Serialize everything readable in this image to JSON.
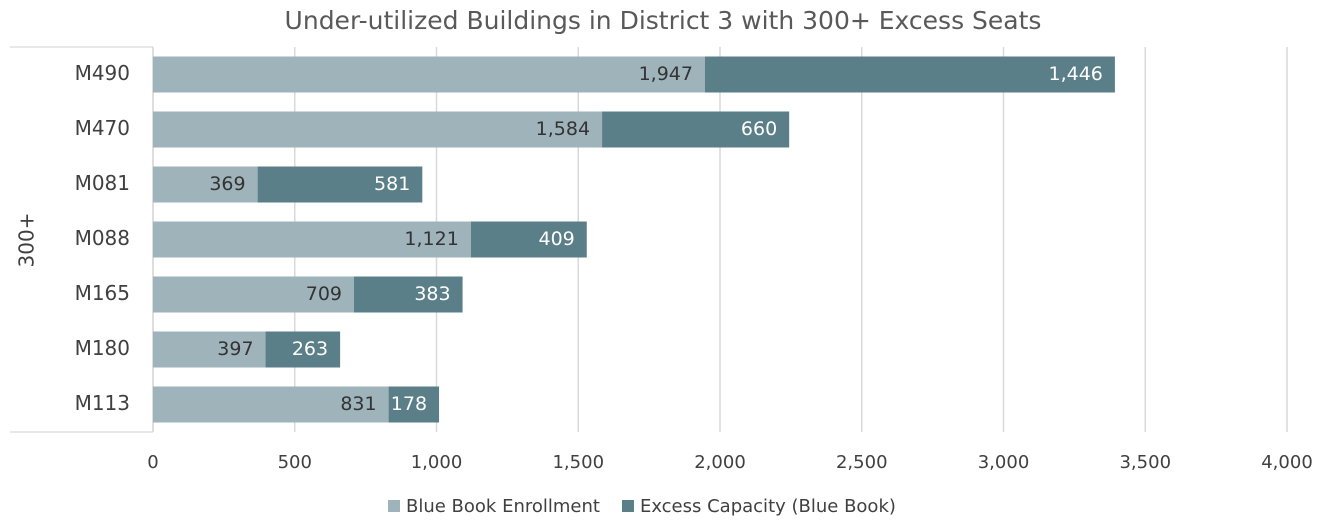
{
  "chart_data": {
    "type": "stacked-barh",
    "title": "Under-utilized Buildings in District 3 with 300+ Excess Seats",
    "group_label": "300+",
    "categories": [
      "M490",
      "M470",
      "M081",
      "M088",
      "M165",
      "M180",
      "M113"
    ],
    "series": [
      {
        "name": "Blue Book Enrollment",
        "color": "#9fb3bb",
        "label_color": "#333333",
        "values": [
          1947,
          1584,
          369,
          1121,
          709,
          397,
          831
        ],
        "value_labels": [
          "1,947",
          "1,584",
          "369",
          "1,121",
          "709",
          "397",
          "831"
        ]
      },
      {
        "name": "Excess Capacity (Blue Book)",
        "color": "#5b7f88",
        "label_color": "#ffffff",
        "values": [
          1446,
          660,
          581,
          409,
          383,
          263,
          178
        ],
        "value_labels": [
          "1,446",
          "660",
          "581",
          "409",
          "383",
          "263",
          "178"
        ]
      }
    ],
    "xlim": [
      0,
      4000
    ],
    "xticks": [
      0,
      500,
      {
        "value": 1000,
        "label": "1,000"
      },
      {
        "value": 1500,
        "label": "1,500"
      },
      {
        "value": 2000,
        "label": "2,000"
      },
      {
        "value": 2500,
        "label": "2,500"
      },
      {
        "value": 3000,
        "label": "3,000"
      },
      {
        "value": 3500,
        "label": "3,500"
      },
      {
        "value": 4000,
        "label": "4,000"
      }
    ],
    "grid": true,
    "legend": "bottom"
  }
}
